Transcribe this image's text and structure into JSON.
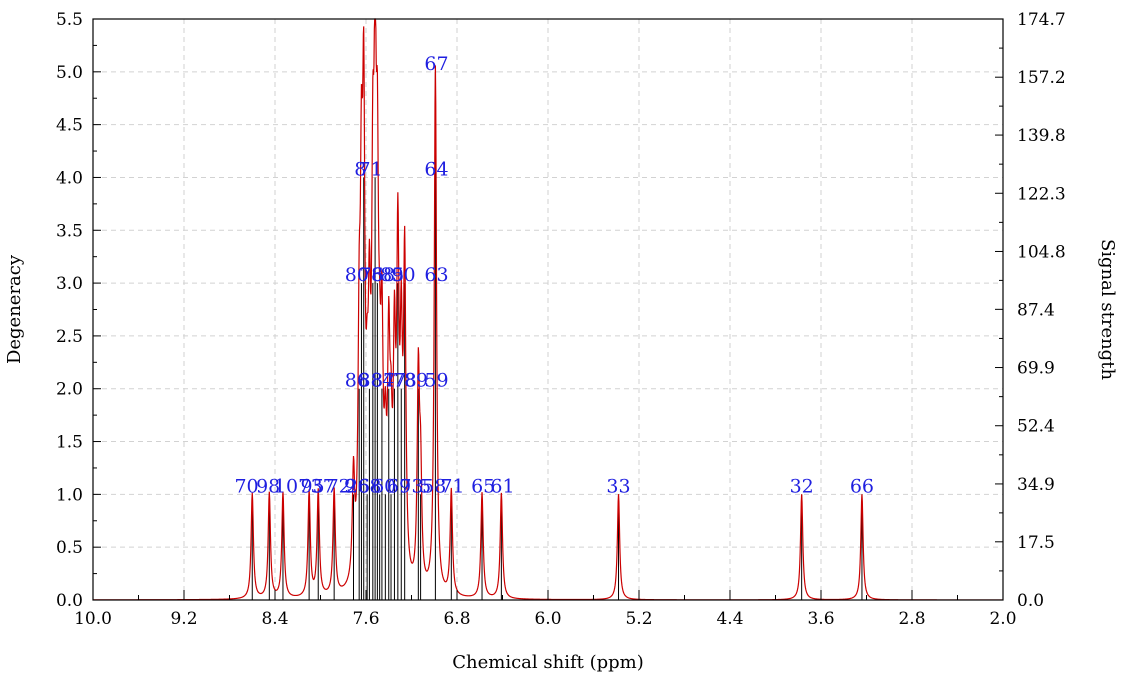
{
  "chart_data": {
    "type": "line",
    "xlabel": "Chemical shift (ppm)",
    "ylabel": "Degeneracy",
    "y2label": "Signal strength",
    "xlim": [
      10.0,
      2.0
    ],
    "ylim": [
      0.0,
      5.5
    ],
    "y2lim": [
      0.0,
      174.7
    ],
    "grid": true,
    "x_ticks": [
      "10.0",
      "9.2",
      "8.4",
      "7.6",
      "6.8",
      "6.0",
      "5.2",
      "4.4",
      "3.6",
      "2.8",
      "2.0"
    ],
    "y_ticks": [
      "0.0",
      "0.5",
      "1.0",
      "1.5",
      "2.0",
      "2.5",
      "3.0",
      "3.5",
      "4.0",
      "4.5",
      "5.0",
      "5.5"
    ],
    "y2_ticks": [
      "0.0",
      "17.5",
      "34.9",
      "52.4",
      "69.9",
      "87.4",
      "104.8",
      "122.3",
      "139.8",
      "157.2",
      "174.7"
    ],
    "line_color": "#cc0000",
    "stick_color": "#000000",
    "label_color": "#1f1fe0",
    "peaks": [
      {
        "shift": 8.6,
        "degeneracy": 1.0
      },
      {
        "shift": 8.45,
        "degeneracy": 1.0
      },
      {
        "shift": 8.33,
        "degeneracy": 1.0
      },
      {
        "shift": 8.1,
        "degeneracy": 1.0
      },
      {
        "shift": 8.02,
        "degeneracy": 1.0
      },
      {
        "shift": 7.88,
        "degeneracy": 1.0
      },
      {
        "shift": 7.71,
        "degeneracy": 1.0
      },
      {
        "shift": 7.66,
        "degeneracy": 2.0
      },
      {
        "shift": 7.64,
        "degeneracy": 3.0
      },
      {
        "shift": 7.62,
        "degeneracy": 4.0
      },
      {
        "shift": 7.59,
        "degeneracy": 1.0
      },
      {
        "shift": 7.57,
        "degeneracy": 2.0
      },
      {
        "shift": 7.54,
        "degeneracy": 3.0
      },
      {
        "shift": 7.52,
        "degeneracy": 4.0
      },
      {
        "shift": 7.5,
        "degeneracy": 3.0
      },
      {
        "shift": 7.48,
        "degeneracy": 1.0
      },
      {
        "shift": 7.46,
        "degeneracy": 2.0
      },
      {
        "shift": 7.43,
        "degeneracy": 1.0
      },
      {
        "shift": 7.4,
        "degeneracy": 2.0
      },
      {
        "shift": 7.38,
        "degeneracy": 1.0
      },
      {
        "shift": 7.35,
        "degeneracy": 2.0
      },
      {
        "shift": 7.32,
        "degeneracy": 3.0
      },
      {
        "shift": 7.29,
        "degeneracy": 2.0
      },
      {
        "shift": 7.26,
        "degeneracy": 3.0
      },
      {
        "shift": 7.14,
        "degeneracy": 2.0
      },
      {
        "shift": 7.12,
        "degeneracy": 1.0
      },
      {
        "shift": 6.99,
        "degeneracy": 5.0
      },
      {
        "shift": 6.85,
        "degeneracy": 1.0
      },
      {
        "shift": 6.58,
        "degeneracy": 1.0
      },
      {
        "shift": 6.41,
        "degeneracy": 1.0
      },
      {
        "shift": 5.38,
        "degeneracy": 1.0
      },
      {
        "shift": 3.77,
        "degeneracy": 1.0
      },
      {
        "shift": 3.24,
        "degeneracy": 1.0
      }
    ],
    "annotations": [
      {
        "text": "70",
        "x": 8.65,
        "y": 1.0
      },
      {
        "text": "98",
        "x": 8.46,
        "y": 1.0
      },
      {
        "text": "107",
        "x": 8.25,
        "y": 1.0
      },
      {
        "text": "95",
        "x": 8.07,
        "y": 1.0
      },
      {
        "text": "37",
        "x": 7.98,
        "y": 1.0
      },
      {
        "text": "72",
        "x": 7.84,
        "y": 1.0
      },
      {
        "text": "9",
        "x": 7.74,
        "y": 1.0
      },
      {
        "text": "26",
        "x": 7.67,
        "y": 1.0
      },
      {
        "text": "68",
        "x": 7.57,
        "y": 1.0
      },
      {
        "text": "60",
        "x": 7.44,
        "y": 1.0
      },
      {
        "text": "69",
        "x": 7.31,
        "y": 1.0
      },
      {
        "text": "73",
        "x": 7.2,
        "y": 1.0
      },
      {
        "text": "5",
        "x": 7.08,
        "y": 1.0
      },
      {
        "text": "58",
        "x": 7.0,
        "y": 1.0
      },
      {
        "text": "71",
        "x": 6.84,
        "y": 1.0
      },
      {
        "text": "65",
        "x": 6.57,
        "y": 1.0
      },
      {
        "text": "61",
        "x": 6.4,
        "y": 1.0
      },
      {
        "text": "33",
        "x": 5.38,
        "y": 1.0
      },
      {
        "text": "32",
        "x": 3.77,
        "y": 1.0
      },
      {
        "text": "66",
        "x": 3.24,
        "y": 1.0
      },
      {
        "text": "86",
        "x": 7.68,
        "y": 2.0
      },
      {
        "text": "88",
        "x": 7.56,
        "y": 2.0
      },
      {
        "text": "87",
        "x": 7.45,
        "y": 2.0
      },
      {
        "text": "47",
        "x": 7.35,
        "y": 2.0
      },
      {
        "text": "78",
        "x": 7.26,
        "y": 2.0
      },
      {
        "text": "89",
        "x": 7.16,
        "y": 2.0
      },
      {
        "text": "59",
        "x": 6.98,
        "y": 2.0
      },
      {
        "text": "80",
        "x": 7.68,
        "y": 3.0
      },
      {
        "text": "76",
        "x": 7.55,
        "y": 3.0
      },
      {
        "text": "88",
        "x": 7.45,
        "y": 3.0
      },
      {
        "text": "85",
        "x": 7.37,
        "y": 3.0
      },
      {
        "text": "90",
        "x": 7.27,
        "y": 3.0
      },
      {
        "text": "63",
        "x": 6.98,
        "y": 3.0
      },
      {
        "text": "8",
        "x": 7.65,
        "y": 4.0
      },
      {
        "text": "71",
        "x": 7.56,
        "y": 4.0
      },
      {
        "text": "64",
        "x": 6.98,
        "y": 4.0
      },
      {
        "text": "67",
        "x": 6.98,
        "y": 5.0
      }
    ]
  }
}
